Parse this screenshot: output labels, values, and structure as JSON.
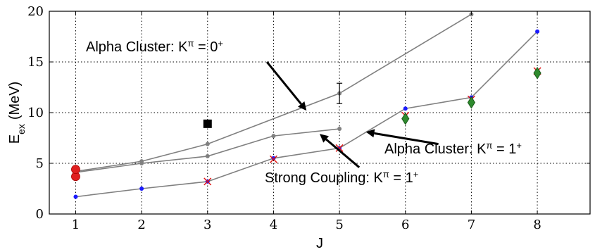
{
  "chart_data": {
    "type": "line",
    "xlabel": "J",
    "ylabel": "E_{ex} (MeV)",
    "ylabel_main": "E",
    "ylabel_sub": "ex",
    "ylabel_unit": "(MeV)",
    "xlim": [
      0.6,
      8.8
    ],
    "ylim": [
      0,
      20
    ],
    "grid": true,
    "xticks": [
      1,
      2,
      3,
      4,
      5,
      6,
      7,
      8
    ],
    "yticks": [
      0,
      5,
      10,
      15,
      20
    ],
    "series": [
      {
        "name": "Alpha Cluster: K^π = 0^+",
        "x": [
          1,
          2,
          3,
          5,
          7
        ],
        "y": [
          4.2,
          5.2,
          6.9,
          11.9,
          19.7
        ],
        "color": "#808080",
        "marker": "#808080"
      },
      {
        "name": "Strong Coupling: K^π = 1^+",
        "x": [
          1,
          2,
          3,
          4,
          5
        ],
        "y": [
          4.1,
          5.0,
          5.7,
          7.7,
          8.4
        ],
        "color": "#808080",
        "marker": "#808080"
      },
      {
        "name": "Alpha Cluster: K^π = 1^+",
        "x": [
          1,
          2,
          3,
          4,
          5,
          6,
          7,
          8
        ],
        "y": [
          1.7,
          2.5,
          3.2,
          5.5,
          6.5,
          10.4,
          11.5,
          18.0
        ],
        "color": "#808080",
        "marker": "#1a1aff"
      }
    ],
    "error_bar": {
      "x": 5,
      "y": 11.9,
      "ylow": 10.9,
      "yhigh": 12.9
    },
    "points_red_circle": [
      {
        "x": 1,
        "y": 3.7
      },
      {
        "x": 1,
        "y": 4.4
      }
    ],
    "points_black_square": [
      {
        "x": 3,
        "y": 8.9
      }
    ],
    "points_cross": [
      {
        "x": 3,
        "y": 3.2
      },
      {
        "x": 4,
        "y": 5.4
      },
      {
        "x": 5,
        "y": 6.5
      },
      {
        "x": 6,
        "y": 9.7
      },
      {
        "x": 7,
        "y": 11.3
      },
      {
        "x": 8,
        "y": 14.1
      }
    ],
    "points_green_diamond": [
      {
        "x": 6,
        "y": 9.4
      },
      {
        "x": 7,
        "y": 11.0
      },
      {
        "x": 8,
        "y": 13.9
      }
    ],
    "annotations": [
      {
        "id": "alpha0",
        "base": "Alpha Cluster: K",
        "sup": "π",
        "mid": " = 0",
        "sup2": "+",
        "arrow": {
          "from": [
            3.9,
            15.0
          ],
          "to": [
            4.5,
            10.2
          ]
        }
      },
      {
        "id": "alpha1",
        "base": "Alpha Cluster: K",
        "sup": "π",
        "mid": " = 1",
        "sup2": "+",
        "arrow": {
          "from": [
            6.5,
            6.9
          ],
          "to": [
            5.4,
            8.1
          ]
        }
      },
      {
        "id": "strong",
        "base": "Strong Coupling: K",
        "sup": "π",
        "mid": " = 1",
        "sup2": "+",
        "arrow": {
          "from": [
            5.3,
            4.6
          ],
          "to": [
            4.7,
            7.9
          ]
        }
      }
    ]
  }
}
